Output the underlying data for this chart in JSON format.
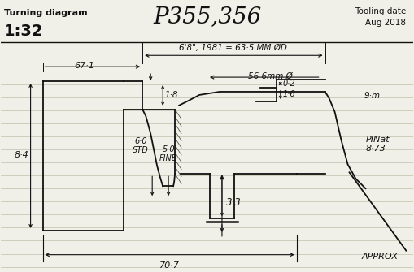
{
  "title": "P355,356",
  "subtitle_left": "Turning diagram",
  "scale": "1:32",
  "tooling_date_label": "Tooling date",
  "tooling_date_value": "Aug 2018",
  "bg_color": "#f0f0e8",
  "line_color": "#111111",
  "ruled_color": "#c8c8b8",
  "n_ruled_lines": 18
}
